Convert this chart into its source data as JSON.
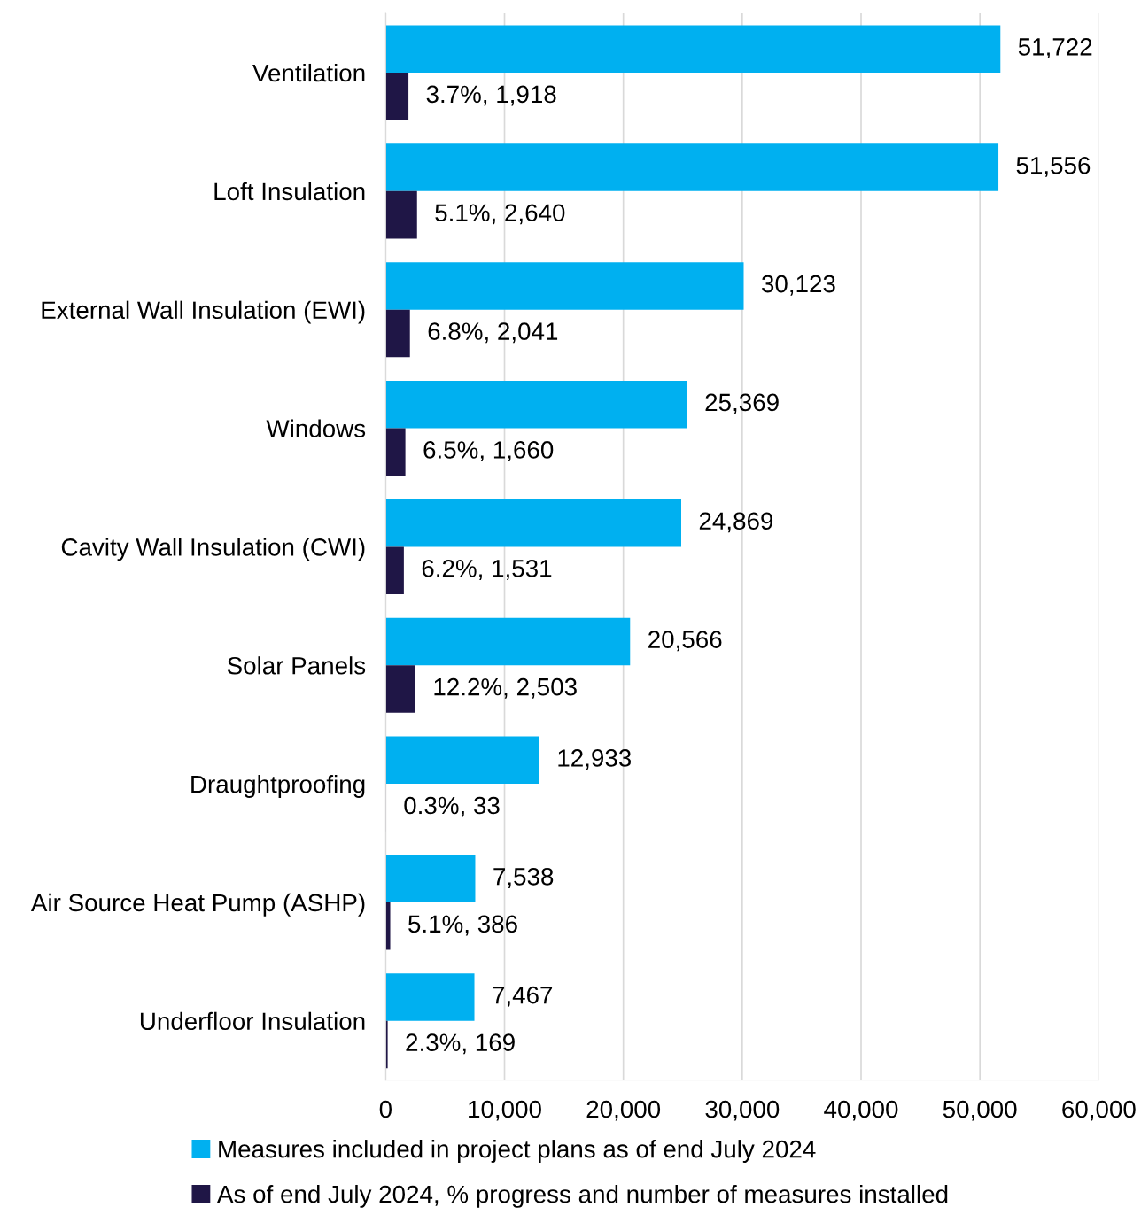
{
  "chart_data": {
    "type": "bar",
    "orientation": "horizontal",
    "categories": [
      "Ventilation",
      "Loft Insulation",
      "External Wall Insulation (EWI)",
      "Windows",
      "Cavity Wall Insulation (CWI)",
      "Solar Panels",
      "Draughtproofing",
      "Air Source Heat Pump (ASHP)",
      "Underfloor Insulation"
    ],
    "series": [
      {
        "name": "Measures included in project plans as of end July 2024",
        "color": "#00b0f0",
        "values": [
          51722,
          51556,
          30123,
          25369,
          24869,
          20566,
          12933,
          7538,
          7467
        ],
        "value_labels": [
          "51,722",
          "51,556",
          "30,123",
          "25,369",
          "24,869",
          "20,566",
          "12,933",
          "7,538",
          "7,467"
        ]
      },
      {
        "name": "As of end July 2024, % progress and number of measures installed",
        "color": "#1f1646",
        "values": [
          1918,
          2640,
          2041,
          1660,
          1531,
          2503,
          33,
          386,
          169
        ],
        "value_labels": [
          "3.7%, 1,918",
          "5.1%, 2,640",
          "6.8%, 2,041",
          "6.5%, 1,660",
          "6.2%, 1,531",
          "12.2%, 2,503",
          "0.3%, 33",
          "5.1%, 386",
          "2.3%, 169"
        ]
      }
    ],
    "xlim": [
      0,
      60000
    ],
    "xticks": [
      {
        "value": 0,
        "label": "0"
      },
      {
        "value": 10000,
        "label": "10,000"
      },
      {
        "value": 20000,
        "label": "20,000"
      },
      {
        "value": 30000,
        "label": "30,000"
      },
      {
        "value": 40000,
        "label": "40,000"
      },
      {
        "value": 50000,
        "label": "50,000"
      },
      {
        "value": 60000,
        "label": "60,000"
      }
    ],
    "grid": "x",
    "legend": "bottom"
  }
}
